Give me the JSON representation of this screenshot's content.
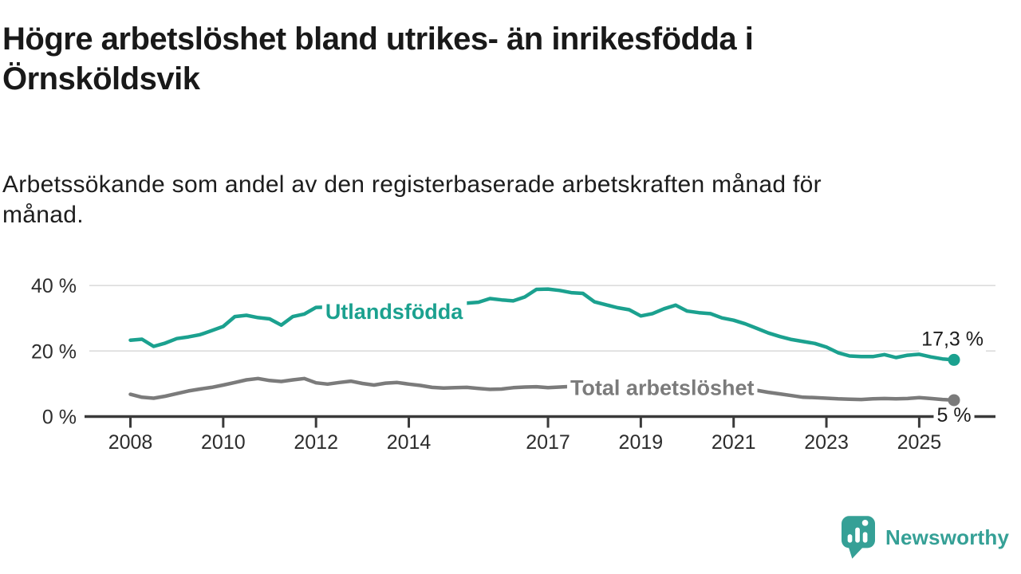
{
  "title_lines": [
    "Högre arbetslöshet bland utrikes- än inrikesfödda i",
    "Örnsköldsvik"
  ],
  "subtitle_lines": [
    "Arbetssökande som andel av den registerbaserade arbetskraften månad för",
    "månad."
  ],
  "logo": {
    "text": "Newsworthy",
    "icon": "newsworthy-bubble-chart-icon",
    "color": "#35a096"
  },
  "colors": {
    "foreign_born_line": "#1ba18f",
    "total_line": "#7b7b7b",
    "gridline": "#d9d9d9",
    "axis": "#3a3a3a",
    "text_dark": "#1c1c1c",
    "background": "#ffffff"
  },
  "chart_data": {
    "type": "line",
    "title": "Högre arbetslöshet bland utrikes- än inrikesfödda i Örnsköldsvik",
    "subtitle": "Arbetssökande som andel av den registerbaserade arbetskraften månad för månad.",
    "xlabel": "",
    "ylabel": "",
    "grid": "horizontal",
    "legend": "inline",
    "xlim": [
      2007.9,
      2026.1
    ],
    "ylim": [
      0,
      43
    ],
    "x_tick_years": [
      2008,
      2010,
      2012,
      2014,
      2017,
      2019,
      2021,
      2023,
      2025
    ],
    "y_ticks": [
      {
        "value": 0,
        "label": "0 %"
      },
      {
        "value": 20,
        "label": "20 %"
      },
      {
        "value": 40,
        "label": "40 %"
      }
    ],
    "x": [
      2008,
      2008.25,
      2008.5,
      2008.75,
      2009,
      2009.25,
      2009.5,
      2009.75,
      2010,
      2010.25,
      2010.5,
      2010.75,
      2011,
      2011.25,
      2011.5,
      2011.75,
      2012,
      2012.25,
      2012.5,
      2012.75,
      2013,
      2013.25,
      2013.5,
      2013.75,
      2014,
      2014.25,
      2014.5,
      2014.75,
      2015,
      2015.25,
      2015.5,
      2015.75,
      2016,
      2016.25,
      2016.5,
      2016.75,
      2017,
      2017.25,
      2017.5,
      2017.75,
      2018,
      2018.25,
      2018.5,
      2018.75,
      2019,
      2019.25,
      2019.5,
      2019.75,
      2020,
      2020.25,
      2020.5,
      2020.75,
      2021,
      2021.25,
      2021.5,
      2021.75,
      2022,
      2022.25,
      2022.5,
      2022.75,
      2023,
      2023.25,
      2023.5,
      2023.75,
      2024,
      2024.25,
      2024.5,
      2024.75,
      2025,
      2025.25,
      2025.5,
      2025.75
    ],
    "series": [
      {
        "name": "Utlandsfödda",
        "color": "#1ba18f",
        "end_label": "17,3 %",
        "end_value": 17.3,
        "label_anchor": {
          "x": 2012.2,
          "y": 32.0
        },
        "values": [
          23.3,
          23.6,
          21.4,
          22.4,
          23.8,
          24.3,
          25.0,
          26.2,
          27.5,
          30.5,
          30.9,
          30.2,
          29.8,
          27.9,
          30.5,
          31.3,
          33.3,
          33.4,
          33.0,
          33.2,
          33.3,
          33.5,
          33.6,
          33.8,
          33.9,
          34.0,
          34.2,
          34.3,
          34.4,
          34.6,
          34.9,
          36.0,
          35.6,
          35.3,
          36.5,
          38.8,
          38.9,
          38.5,
          37.8,
          37.6,
          35.0,
          34.1,
          33.2,
          32.6,
          30.7,
          31.4,
          32.9,
          34.0,
          32.2,
          31.7,
          31.4,
          30.1,
          29.4,
          28.3,
          26.9,
          25.5,
          24.4,
          23.5,
          22.9,
          22.3,
          21.2,
          19.5,
          18.5,
          18.3,
          18.3,
          18.9,
          18.0,
          18.7,
          19.0,
          18.2,
          17.6,
          17.3
        ]
      },
      {
        "name": "Total arbetslöshet",
        "color": "#7b7b7b",
        "end_label": "5 %",
        "end_value": 5.0,
        "label_anchor": {
          "x": 2017.48,
          "y": 8.8
        },
        "values": [
          6.8,
          5.9,
          5.6,
          6.2,
          7.0,
          7.8,
          8.4,
          8.9,
          9.6,
          10.4,
          11.2,
          11.6,
          11.0,
          10.7,
          11.2,
          11.6,
          10.3,
          9.9,
          10.4,
          10.8,
          10.1,
          9.6,
          10.2,
          10.4,
          9.9,
          9.5,
          8.9,
          8.7,
          8.8,
          8.9,
          8.6,
          8.3,
          8.4,
          8.8,
          9.0,
          9.1,
          8.8,
          9.0,
          9.2,
          9.0,
          8.8,
          8.6,
          8.5,
          8.4,
          8.3,
          8.2,
          8.2,
          8.4,
          8.6,
          9.2,
          9.4,
          9.2,
          8.9,
          8.5,
          8.0,
          7.4,
          6.9,
          6.4,
          5.9,
          5.8,
          5.6,
          5.4,
          5.3,
          5.2,
          5.4,
          5.5,
          5.4,
          5.5,
          5.8,
          5.5,
          5.2,
          5.0
        ]
      }
    ]
  }
}
